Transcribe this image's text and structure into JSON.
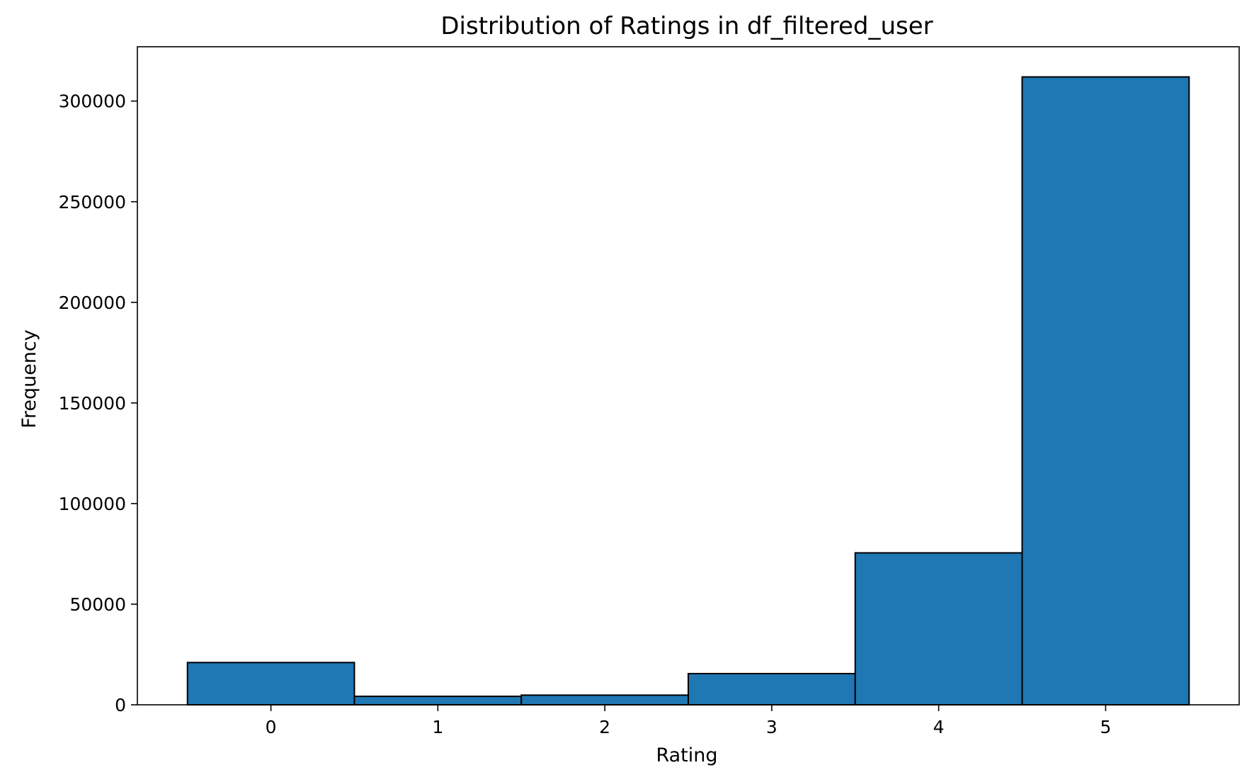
{
  "chart_data": {
    "type": "bar",
    "title": "Distribution of Ratings in df_filtered_user",
    "xlabel": "Rating",
    "ylabel": "Frequency",
    "categories": [
      "0",
      "1",
      "2",
      "3",
      "4",
      "5"
    ],
    "x": [
      0,
      1,
      2,
      3,
      4,
      5
    ],
    "values": [
      21000,
      4200,
      4800,
      15500,
      75500,
      312000
    ],
    "xlim": [
      -0.8,
      5.8
    ],
    "ylim": [
      0,
      327000
    ],
    "yticks": [
      0,
      50000,
      100000,
      150000,
      200000,
      250000,
      300000
    ],
    "ytick_labels": [
      "0",
      "50000",
      "100000",
      "150000",
      "200000",
      "250000",
      "300000"
    ],
    "xticks": [
      0,
      1,
      2,
      3,
      4,
      5
    ],
    "xtick_labels": [
      "0",
      "1",
      "2",
      "3",
      "4",
      "5"
    ],
    "bar_color": "#1f77b4",
    "edge_color": "#000000",
    "grid": false,
    "legend": false
  }
}
